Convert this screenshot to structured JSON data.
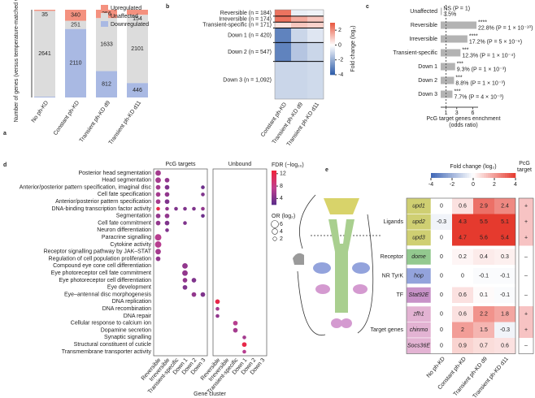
{
  "chart_data": [
    {
      "panel": "a",
      "type": "bar",
      "stacked": true,
      "ylabel": "Number of genes (versus temperature-matched w-KD)",
      "categories": [
        "No ph-KD",
        "Constant ph-KD",
        "Transient ph-KD d9",
        "Transient ph-KD d11"
      ],
      "series": [
        {
          "name": "Upregulated",
          "color": "#f4917f",
          "values": [
            35,
            340,
            256,
            154
          ]
        },
        {
          "name": "Unaffected",
          "color": "#dcdcdc",
          "values": [
            2641,
            251,
            1633,
            2101
          ]
        },
        {
          "name": "Downregulated",
          "color": "#a9b9e3",
          "values": [
            25,
            2110,
            812,
            446
          ]
        }
      ],
      "ylim": [
        0,
        2701
      ],
      "legend": "upper right"
    },
    {
      "panel": "b",
      "type": "heatmap",
      "categories": [
        "Reversible (n = 184)",
        "Irreversible (n = 174)",
        "Transient-specific (n = 171)",
        "Down 1 (n = 420)",
        "Down 2 (n = 547)",
        "Down 3 (n = 1,092)"
      ],
      "sizes": [
        184,
        174,
        171,
        420,
        547,
        1092
      ],
      "columns": [
        "Constant ph-KD",
        "Transient ph-KD d9",
        "Transient ph-KD d11"
      ],
      "values": [
        [
          2.5,
          -0.4,
          -0.3
        ],
        [
          2.5,
          1.5,
          1.0
        ],
        [
          0.5,
          1.0,
          0.8
        ],
        [
          -3,
          -1,
          -0.6
        ],
        [
          -3,
          -1.4,
          -1
        ],
        [
          -1,
          -1,
          -0.9
        ]
      ],
      "colorbar_label": "Fold change (log₂)",
      "clim": [
        -4,
        3
      ],
      "cticks": [
        -4,
        -2,
        0,
        2
      ]
    },
    {
      "panel": "c",
      "type": "barh",
      "categories": [
        "Unaffected",
        "Reversible",
        "Irreversible",
        "Transient-specific",
        "Down 1",
        "Down 2",
        "Down 3"
      ],
      "values": [
        0.2,
        6.7,
        5.0,
        3.7,
        2.7,
        2.5,
        2.2
      ],
      "significance": [
        "NS (P = 1)",
        "****",
        "****",
        "***",
        "***",
        "***",
        "***"
      ],
      "annotations": [
        "3.5%",
        "22.8% (P = 1 × 10⁻¹⁰)",
        "17.2% (P = 5 × 10⁻⁶)",
        "12.3% (P = 1 × 10⁻⁴)",
        "9.3% (P = 1 × 10⁻³)",
        "8.8% (P = 1 × 10⁻³)",
        "7.7% (P = 4 × 10⁻³)"
      ],
      "xlabel": "PcG target genes enrichment (odds ratio)",
      "xlim": [
        0,
        7
      ],
      "xticks": [
        1,
        3,
        6
      ],
      "reference_line": 1,
      "color": "#b3b3b3"
    },
    {
      "panel": "d",
      "type": "dot",
      "groups": [
        "PcG targets",
        "Unbound"
      ],
      "categories": [
        "Posterior head segmentation",
        "Head segmentation",
        "Anterior/posterior pattern specification, imaginal disc",
        "Cell fate specification",
        "Anterior/posterior pattern specification",
        "DNA-binding transcription factor activity",
        "Segmentation",
        "Cell fate commitment",
        "Neuron differentiation",
        "Paracrine signalling",
        "Cytokine activity",
        "Receptor signalling pathway by JAK–STAT",
        "Regulation of cell population proliferation",
        "Compound eye cone cell differentiation",
        "Eye photoreceptor cell fate commitment",
        "Eye photoreceptor cell differentiation",
        "Eye development",
        "Eye–antennal disc morphogenesis",
        "DNA replication",
        "DNA recombination",
        "DNA repair",
        "Cellular response to calcium ion",
        "Dopamine secretion",
        "Synaptic signalling",
        "Structural constituent of cuticle",
        "Transmembrane transporter activity"
      ],
      "x": [
        "Reversible",
        "Irreversible",
        "Transient-specific",
        "Down 1",
        "Down 2",
        "Down 3",
        "Reversible",
        "Irreversible",
        "Transient-specific",
        "Down 1",
        "Down 2",
        "Down 3"
      ],
      "xlabel": "Gene cluster",
      "points": [
        {
          "term": 0,
          "cluster": 0,
          "fdr": 6,
          "or": 4
        },
        {
          "term": 1,
          "cluster": 0,
          "fdr": 6,
          "or": 4
        },
        {
          "term": 1,
          "cluster": 1,
          "fdr": 5,
          "or": 3
        },
        {
          "term": 2,
          "cluster": 0,
          "fdr": 6,
          "or": 3
        },
        {
          "term": 2,
          "cluster": 1,
          "fdr": 4,
          "or": 3
        },
        {
          "term": 2,
          "cluster": 5,
          "fdr": 3,
          "or": 2
        },
        {
          "term": 3,
          "cluster": 0,
          "fdr": 6,
          "or": 3
        },
        {
          "term": 3,
          "cluster": 1,
          "fdr": 5,
          "or": 3
        },
        {
          "term": 3,
          "cluster": 5,
          "fdr": 4,
          "or": 2
        },
        {
          "term": 4,
          "cluster": 0,
          "fdr": 6,
          "or": 3
        },
        {
          "term": 4,
          "cluster": 1,
          "fdr": 4,
          "or": 3
        },
        {
          "term": 5,
          "cluster": 0,
          "fdr": 12,
          "or": 2
        },
        {
          "term": 5,
          "cluster": 1,
          "fdr": 5,
          "or": 2
        },
        {
          "term": 5,
          "cluster": 2,
          "fdr": 4,
          "or": 2
        },
        {
          "term": 5,
          "cluster": 3,
          "fdr": 4,
          "or": 2
        },
        {
          "term": 5,
          "cluster": 4,
          "fdr": 4,
          "or": 2
        },
        {
          "term": 5,
          "cluster": 5,
          "fdr": 5,
          "or": 2
        },
        {
          "term": 6,
          "cluster": 0,
          "fdr": 5,
          "or": 3
        },
        {
          "term": 6,
          "cluster": 1,
          "fdr": 5,
          "or": 3
        },
        {
          "term": 6,
          "cluster": 5,
          "fdr": 3,
          "or": 2
        },
        {
          "term": 7,
          "cluster": 0,
          "fdr": 5,
          "or": 3
        },
        {
          "term": 7,
          "cluster": 1,
          "fdr": 4,
          "or": 3
        },
        {
          "term": 7,
          "cluster": 3,
          "fdr": 4,
          "or": 2
        },
        {
          "term": 8,
          "cluster": 1,
          "fdr": 4,
          "or": 2
        },
        {
          "term": 9,
          "cluster": 0,
          "fdr": 7,
          "or": 5
        },
        {
          "term": 10,
          "cluster": 0,
          "fdr": 7,
          "or": 5
        },
        {
          "term": 11,
          "cluster": 0,
          "fdr": 6,
          "or": 4
        },
        {
          "term": 12,
          "cluster": 0,
          "fdr": 5,
          "or": 3
        },
        {
          "term": 13,
          "cluster": 3,
          "fdr": 5,
          "or": 4
        },
        {
          "term": 14,
          "cluster": 3,
          "fdr": 5,
          "or": 4
        },
        {
          "term": 15,
          "cluster": 3,
          "fdr": 5,
          "or": 3
        },
        {
          "term": 15,
          "cluster": 4,
          "fdr": 4,
          "or": 3
        },
        {
          "term": 16,
          "cluster": 3,
          "fdr": 4,
          "or": 3
        },
        {
          "term": 17,
          "cluster": 4,
          "fdr": 5,
          "or": 3
        },
        {
          "term": 17,
          "cluster": 5,
          "fdr": 4,
          "or": 3
        },
        {
          "term": 18,
          "cluster": 6,
          "fdr": 12,
          "or": 3
        },
        {
          "term": 19,
          "cluster": 6,
          "fdr": 6,
          "or": 2
        },
        {
          "term": 20,
          "cluster": 6,
          "fdr": 5,
          "or": 2
        },
        {
          "term": 21,
          "cluster": 8,
          "fdr": 7,
          "or": 3
        },
        {
          "term": 22,
          "cluster": 8,
          "fdr": 6,
          "or": 3
        },
        {
          "term": 23,
          "cluster": 9,
          "fdr": 6,
          "or": 2
        },
        {
          "term": 24,
          "cluster": 9,
          "fdr": 12,
          "or": 3
        },
        {
          "term": 25,
          "cluster": 9,
          "fdr": 7,
          "or": 2
        }
      ],
      "color_label": "FDR (−log₁₀)",
      "clim": [
        2,
        13
      ],
      "cticks": [
        4,
        8,
        12
      ],
      "size_label": "OR (log₂)",
      "size_ticks": [
        6,
        4,
        2
      ]
    },
    {
      "panel": "e",
      "type": "table_heatmap",
      "colorbar_label": "Fold change (log₂)",
      "clim": [
        -4,
        4
      ],
      "cticks": [
        -4,
        -2,
        0,
        2,
        4
      ],
      "columns": [
        "No ph-KD",
        "Constant ph-KD",
        "Transient ph-KD d9",
        "Transient ph-KD d11"
      ],
      "pcg_header": "PcG target",
      "groups": [
        {
          "name": "Ligands",
          "color": "#cfcf72",
          "genes": [
            {
              "gene": "upd1",
              "values": [
                0,
                0.6,
                2.9,
                2.4
              ],
              "pcg": "+"
            },
            {
              "gene": "upd2",
              "values": [
                -0.3,
                4.3,
                5.5,
                5.1
              ],
              "pcg": "+"
            },
            {
              "gene": "upd3",
              "values": [
                0,
                4.7,
                5.6,
                5.4
              ],
              "pcg": "+"
            }
          ]
        },
        {
          "name": "Receptor",
          "color": "#93c98f",
          "genes": [
            {
              "gene": "dome",
              "values": [
                0,
                0.2,
                0.4,
                0.3
              ],
              "pcg": "–"
            }
          ]
        },
        {
          "name": "NR TyrK",
          "color": "#93a3dc",
          "genes": [
            {
              "gene": "hop",
              "values": [
                0,
                0,
                -0.1,
                -0.1
              ],
              "pcg": "–"
            }
          ]
        },
        {
          "name": "TF",
          "color": "#c892c8",
          "genes": [
            {
              "gene": "Stat92E",
              "values": [
                0,
                0.6,
                0.1,
                -0.1
              ],
              "pcg": "–"
            }
          ]
        },
        {
          "name": "Target genes",
          "color": "#e3b3d3",
          "genes": [
            {
              "gene": "zfh1",
              "values": [
                0,
                0.6,
                2.2,
                1.8
              ],
              "pcg": "+"
            },
            {
              "gene": "chinmo",
              "values": [
                0,
                2,
                1.5,
                -0.3
              ],
              "pcg": "+"
            },
            {
              "gene": "Socs36E",
              "values": [
                0,
                0.9,
                0.7,
                0.6
              ],
              "pcg": "–"
            }
          ]
        }
      ]
    }
  ]
}
